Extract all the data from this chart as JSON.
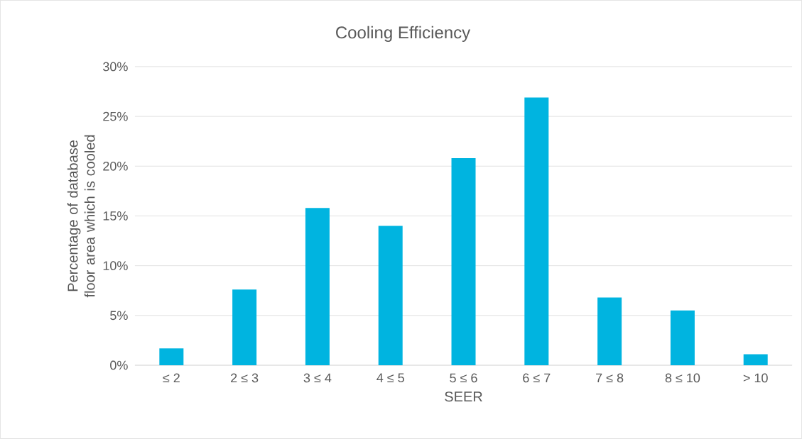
{
  "chart_data": {
    "type": "bar",
    "title": "Cooling Efficiency",
    "xlabel": "SEER",
    "ylabel": "Percentage of database floor area which is cooled",
    "categories": [
      "≤ 2",
      "2 ≤ 3",
      "3 ≤ 4",
      "4 ≤ 5",
      "5 ≤ 6",
      "6 ≤ 7",
      "7 ≤ 8",
      "8 ≤ 10",
      "> 10"
    ],
    "values": [
      1.7,
      7.6,
      15.8,
      14.0,
      20.8,
      26.9,
      6.8,
      5.5,
      1.1
    ],
    "color": "#00b4e0",
    "ylim": [
      0,
      30
    ],
    "yticks": [
      {
        "value": 0,
        "label": "0%"
      },
      {
        "value": 5,
        "label": "5%"
      },
      {
        "value": 10,
        "label": "10%"
      },
      {
        "value": 15,
        "label": "15%"
      },
      {
        "value": 20,
        "label": "20%"
      },
      {
        "value": 25,
        "label": "25%"
      },
      {
        "value": 30,
        "label": "30%"
      }
    ],
    "grid": "y"
  }
}
